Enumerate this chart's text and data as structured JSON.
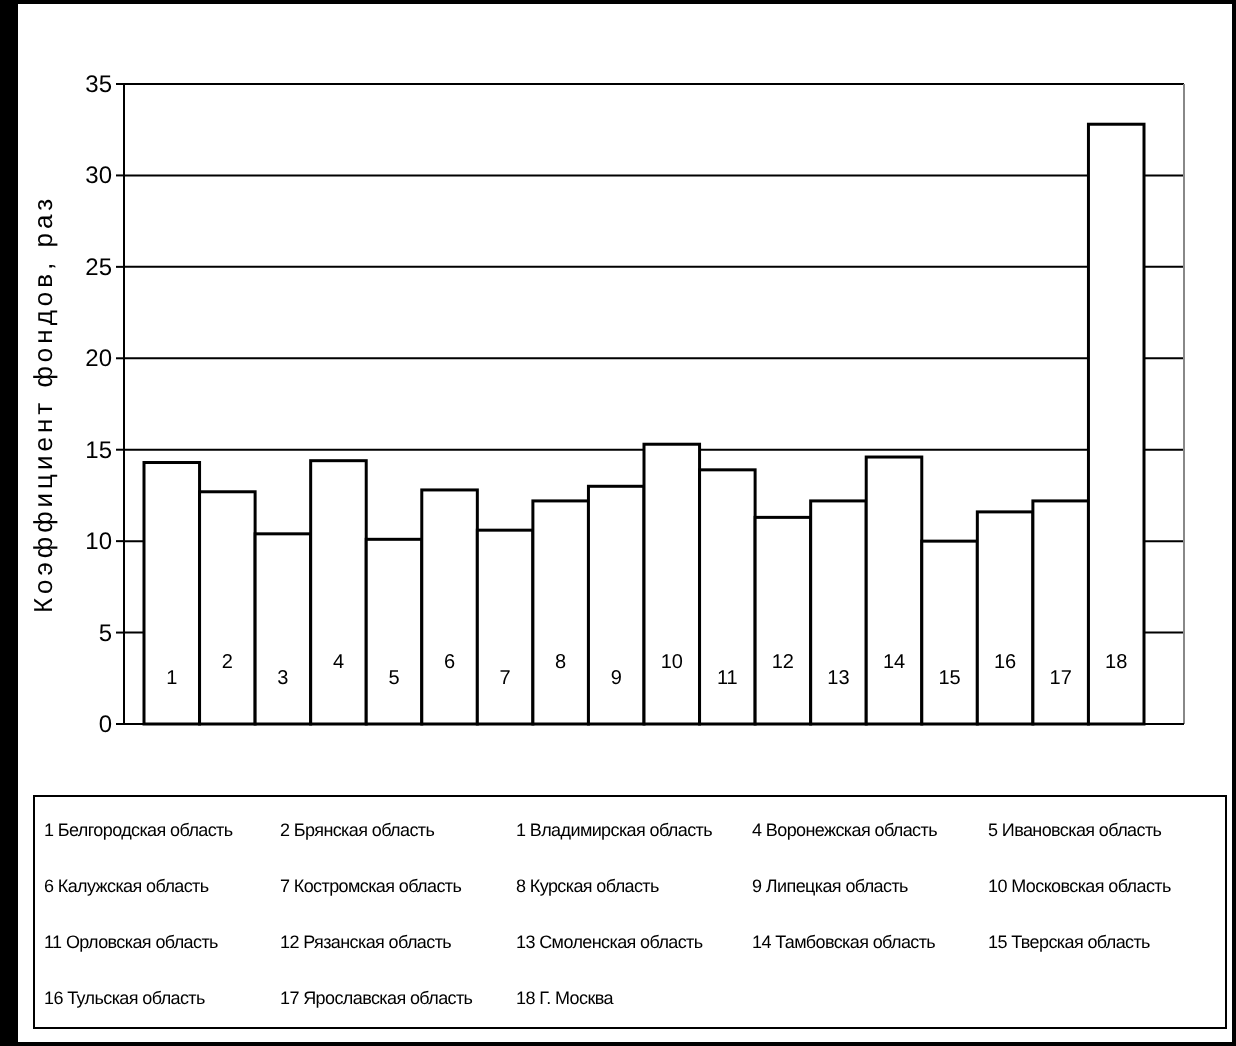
{
  "chart_data": {
    "type": "bar",
    "ylabel": "Коэффициент фондов, раз",
    "categories": [
      "1",
      "2",
      "3",
      "4",
      "5",
      "6",
      "7",
      "8",
      "9",
      "10",
      "11",
      "12",
      "13",
      "14",
      "15",
      "16",
      "17",
      "18"
    ],
    "values": [
      14.3,
      12.7,
      10.4,
      14.4,
      10.1,
      12.8,
      10.6,
      12.2,
      13.0,
      15.3,
      13.9,
      11.3,
      12.2,
      14.6,
      10.0,
      11.6,
      12.2,
      32.8
    ],
    "color": "#ffffff",
    "ylim": [
      0,
      35
    ],
    "yticks": [
      0,
      5,
      10,
      15,
      20,
      25,
      30,
      35
    ],
    "grid": "y",
    "annotations": [
      "1 Белгородская область",
      "2 Брянская область",
      "1 Владимирская область",
      "4 Воронежская область",
      "5 Ивановская область",
      "6 Калужская область",
      "7 Костромская область",
      "8 Курская область",
      "9 Липецкая область",
      "10 Московская область",
      "11 Орловская область",
      "12 Рязанская область",
      "13 Смоленская область",
      "14 Тамбовская область",
      "15 Тверская область",
      "16 Тульская область",
      "17 Ярославская область",
      "18 Г. Москва"
    ]
  }
}
